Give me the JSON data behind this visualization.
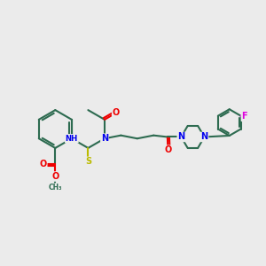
{
  "bg_color": "#ebebeb",
  "bond_color": "#2d6b50",
  "bond_width": 1.5,
  "atom_colors": {
    "N": "#0000ee",
    "O": "#ee0000",
    "S": "#bbbb00",
    "F": "#dd00dd",
    "C": "#2d6b50"
  },
  "figsize": [
    3.0,
    3.0
  ],
  "dpi": 100,
  "xlim": [
    0,
    10
  ],
  "ylim": [
    0,
    10
  ]
}
